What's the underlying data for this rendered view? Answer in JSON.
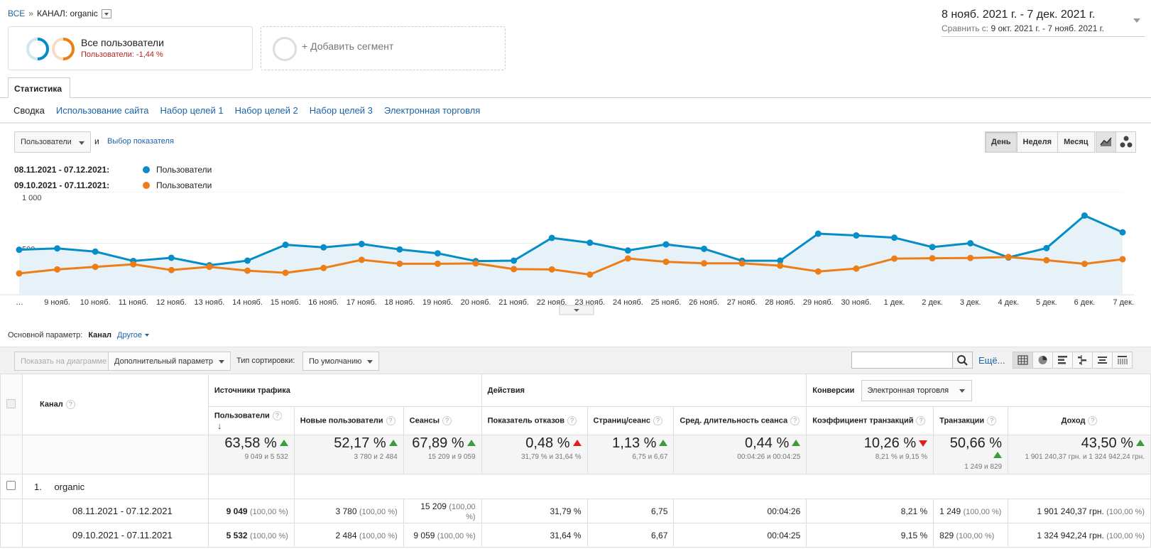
{
  "breadcrumb": {
    "all": "ВСЕ",
    "sep": "»",
    "current": "КАНАЛ: organic"
  },
  "date_range": {
    "main": "8 нояб. 2021 г. - 7 дек. 2021 г.",
    "compare_label": "Сравнить с:",
    "compare_value": "9 окт. 2021 г. - 7 нояб. 2021 г."
  },
  "segment": {
    "title": "Все пользователи",
    "subtitle": "Пользователи: -1,44 %"
  },
  "add_segment": "+ Добавить сегмент",
  "tabs": {
    "stat": "Статистика"
  },
  "subnav": [
    "Сводка",
    "Использование сайта",
    "Набор целей 1",
    "Набор целей 2",
    "Набор целей 3",
    "Электронная торговля"
  ],
  "chart_controls": {
    "metric": "Пользователи",
    "and": "и",
    "pick_metric": "Выбор показателя",
    "periods": [
      "День",
      "Неделя",
      "Месяц"
    ]
  },
  "legend": [
    {
      "range": "08.11.2021 - 07.12.2021:",
      "label": "Пользователи",
      "color": "#058dc7"
    },
    {
      "range": "09.10.2021 - 07.11.2021:",
      "label": "Пользователи",
      "color": "#ed7e17"
    }
  ],
  "chart_data": {
    "type": "line",
    "x": [
      "…",
      "9 нояб.",
      "10 нояб.",
      "11 нояб.",
      "12 нояб.",
      "13 нояб.",
      "14 нояб.",
      "15 нояб.",
      "16 нояб.",
      "17 нояб.",
      "18 нояб.",
      "19 нояб.",
      "20 нояб.",
      "21 нояб.",
      "22 нояб.",
      "23 нояб.",
      "24 нояб.",
      "25 нояб.",
      "26 нояб.",
      "27 нояб.",
      "28 нояб.",
      "29 нояб.",
      "30 нояб.",
      "1 дек.",
      "2 дек.",
      "3 дек.",
      "4 дек.",
      "5 дек.",
      "6 дек.",
      "7 дек."
    ],
    "yticks": [
      "1 000",
      "500"
    ],
    "ylim": [
      0,
      1000
    ],
    "series": [
      {
        "name": "Пользователи",
        "color": "#058dc7",
        "values": [
          437,
          450,
          419,
          328,
          359,
          286,
          331,
          485,
          460,
          493,
          440,
          402,
          327,
          331,
          552,
          505,
          430,
          489,
          446,
          330,
          331,
          593,
          576,
          554,
          463,
          500,
          362,
          453,
          769,
          606
        ]
      },
      {
        "name": "Пользователи",
        "color": "#ed7e17",
        "values": [
          207,
          246,
          271,
          296,
          240,
          271,
          234,
          213,
          260,
          339,
          301,
          301,
          304,
          249,
          246,
          196,
          352,
          320,
          305,
          305,
          282,
          226,
          254,
          351,
          354,
          357,
          366,
          335,
          300,
          345
        ]
      }
    ]
  },
  "dimension": {
    "label": "Основной параметр:",
    "current": "Канал",
    "other": "Другое"
  },
  "toolbar": {
    "show_chart": "Показать на диаграмме",
    "extra_param": "Дополнительный параметр",
    "sort_label": "Тип сортировки:",
    "sort_value": "По умолчанию",
    "more": "Ещё..."
  },
  "table": {
    "col_channel": "Канал",
    "group_traffic": "Источники трафика",
    "group_actions": "Действия",
    "group_conv": "Конверсии",
    "conv_select": "Электронная торговля",
    "help": "?",
    "columns": [
      "Пользователи",
      "Новые пользователи",
      "Сеансы",
      "Показатель отказов",
      "Страниц/сеанс",
      "Сред. длительность сеанса",
      "Коэффициент транзакций",
      "Транзакции",
      "Доход"
    ],
    "summary": [
      {
        "pct": "63,58 %",
        "dir": "up",
        "cmp": "9 049 и 5 532"
      },
      {
        "pct": "52,17 %",
        "dir": "up",
        "cmp": "3 780 и 2 484"
      },
      {
        "pct": "67,89 %",
        "dir": "up",
        "cmp": "15 209 и 9 059"
      },
      {
        "pct": "0,48 %",
        "dir": "up-red",
        "cmp": "31,79 % и 31,64 %"
      },
      {
        "pct": "1,13 %",
        "dir": "up",
        "cmp": "6,75 и 6,67"
      },
      {
        "pct": "0,44 %",
        "dir": "up",
        "cmp": "00:04:26 и 00:04:25"
      },
      {
        "pct": "10,26 %",
        "dir": "down",
        "cmp": "8,21 % и 9,15 %"
      },
      {
        "pct": "50,66 %",
        "dir": "up",
        "cmp": "1 249 и 829"
      },
      {
        "pct": "43,50 %",
        "dir": "up",
        "cmp": "1 901 240,37 грн. и 1 324 942,24 грн."
      }
    ],
    "row_index": "1.",
    "row_name": "organic",
    "periods": [
      {
        "label": "08.11.2021 - 07.12.2021",
        "users": "9 049",
        "users_p": "(100,00 %)",
        "new": "3 780",
        "new_p": "(100,00 %)",
        "sess": "15 209",
        "sess_p": "(100,00 %)",
        "bounce": "31,79 %",
        "pps": "6,75",
        "dur": "00:04:26",
        "conv": "8,21 %",
        "tr": "1 249",
        "tr_p": "(100,00 %)",
        "rev": "1 901 240,37 грн.",
        "rev_p": "(100,00 %)"
      },
      {
        "label": "09.10.2021 - 07.11.2021",
        "users": "5 532",
        "users_p": "(100,00 %)",
        "new": "2 484",
        "new_p": "(100,00 %)",
        "sess": "9 059",
        "sess_p": "(100,00 %)",
        "bounce": "31,64 %",
        "pps": "6,67",
        "dur": "00:04:25",
        "conv": "9,15 %",
        "tr": "829",
        "tr_p": "(100,00 %)",
        "rev": "1 324 942,24 грн.",
        "rev_p": "(100,00 %)"
      }
    ]
  }
}
